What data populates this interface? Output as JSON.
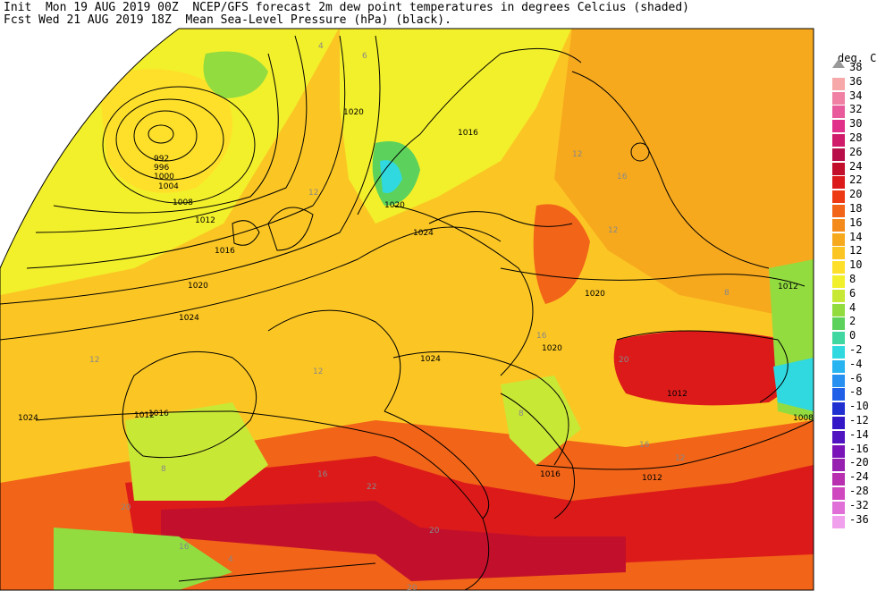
{
  "header": {
    "line1": "Init  Mon 19 AUG 2019 00Z  NCEP/GFS forecast 2m dew point temperatures in degrees Celcius (shaded)",
    "line2": "Fcst Wed 21 AUG 2019 18Z  Mean Sea-Level Pressure (hPa) (black)."
  },
  "colorbar": {
    "title": "deg. C",
    "levels": [
      {
        "label": "38",
        "color": "#999999"
      },
      {
        "label": "36",
        "color": "#f7a8a8"
      },
      {
        "label": "34",
        "color": "#f081a4"
      },
      {
        "label": "32",
        "color": "#e85a9c"
      },
      {
        "label": "30",
        "color": "#e0308a"
      },
      {
        "label": "28",
        "color": "#d01a6a"
      },
      {
        "label": "26",
        "color": "#b80e4a"
      },
      {
        "label": "24",
        "color": "#c2102c"
      },
      {
        "label": "22",
        "color": "#dc1a1a"
      },
      {
        "label": "20",
        "color": "#ee3a14"
      },
      {
        "label": "18",
        "color": "#f26418"
      },
      {
        "label": "16",
        "color": "#f48a1c"
      },
      {
        "label": "14",
        "color": "#f7a91e"
      },
      {
        "label": "12",
        "color": "#fbc624"
      },
      {
        "label": "10",
        "color": "#fee02a"
      },
      {
        "label": "8",
        "color": "#f2f02a"
      },
      {
        "label": "6",
        "color": "#c8e836"
      },
      {
        "label": "4",
        "color": "#92dc40"
      },
      {
        "label": "2",
        "color": "#5cd25c"
      },
      {
        "label": "0",
        "color": "#40d8a0"
      },
      {
        "label": "-2",
        "color": "#30d8e0"
      },
      {
        "label": "-4",
        "color": "#28b4f0"
      },
      {
        "label": "-6",
        "color": "#2890f0"
      },
      {
        "label": "-8",
        "color": "#2060e8"
      },
      {
        "label": "-10",
        "color": "#2030d0"
      },
      {
        "label": "-12",
        "color": "#3418c8"
      },
      {
        "label": "-14",
        "color": "#5014c0"
      },
      {
        "label": "-16",
        "color": "#7a14b8"
      },
      {
        "label": "-20",
        "color": "#9820b0"
      },
      {
        "label": "-24",
        "color": "#b830b0"
      },
      {
        "label": "-28",
        "color": "#d048c0"
      },
      {
        "label": "-32",
        "color": "#e070d8"
      },
      {
        "label": "-36",
        "color": "#f0a0ec"
      }
    ]
  },
  "isobar_labels": [
    "992",
    "996",
    "1000",
    "1004",
    "1008",
    "1012",
    "1016",
    "1020",
    "1024",
    "1020",
    "1012",
    "1016",
    "1024",
    "1020",
    "1016",
    "1012",
    "1008",
    "1024",
    "1020",
    "1016",
    "1012",
    "1012",
    "1020",
    "1024"
  ],
  "dewpoint_labels": [
    "4",
    "6",
    "12",
    "16",
    "12",
    "12",
    "8",
    "12",
    "16",
    "20",
    "20",
    "16",
    "12",
    "8",
    "4",
    "16",
    "20",
    "22",
    "20",
    "16",
    "12",
    "8"
  ]
}
